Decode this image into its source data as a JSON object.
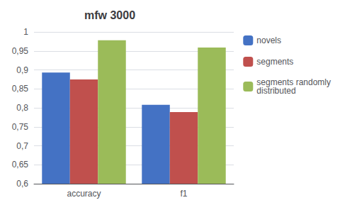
{
  "chart_data": {
    "type": "bar",
    "title": "mfw 3000",
    "categories": [
      "accuracy",
      "f1"
    ],
    "series": [
      {
        "name": "novels",
        "values": [
          0.893,
          0.808
        ],
        "color": "#4472C4"
      },
      {
        "name": "segments",
        "values": [
          0.875,
          0.789
        ],
        "color": "#C0504D"
      },
      {
        "name": "segments randomly\ndistributed",
        "values": [
          0.978,
          0.959
        ],
        "color": "#9BBB59"
      }
    ],
    "ylim": [
      0.6,
      1.0
    ],
    "yticks": [
      {
        "value": 0.6,
        "label": "0,6"
      },
      {
        "value": 0.65,
        "label": "0,65"
      },
      {
        "value": 0.7,
        "label": "0,7"
      },
      {
        "value": 0.75,
        "label": "0,75"
      },
      {
        "value": 0.8,
        "label": "0,8"
      },
      {
        "value": 0.85,
        "label": "0,85"
      },
      {
        "value": 0.9,
        "label": "0,9"
      },
      {
        "value": 0.95,
        "label": "0,95"
      },
      1
    ],
    "grid": true,
    "legend": "right"
  }
}
